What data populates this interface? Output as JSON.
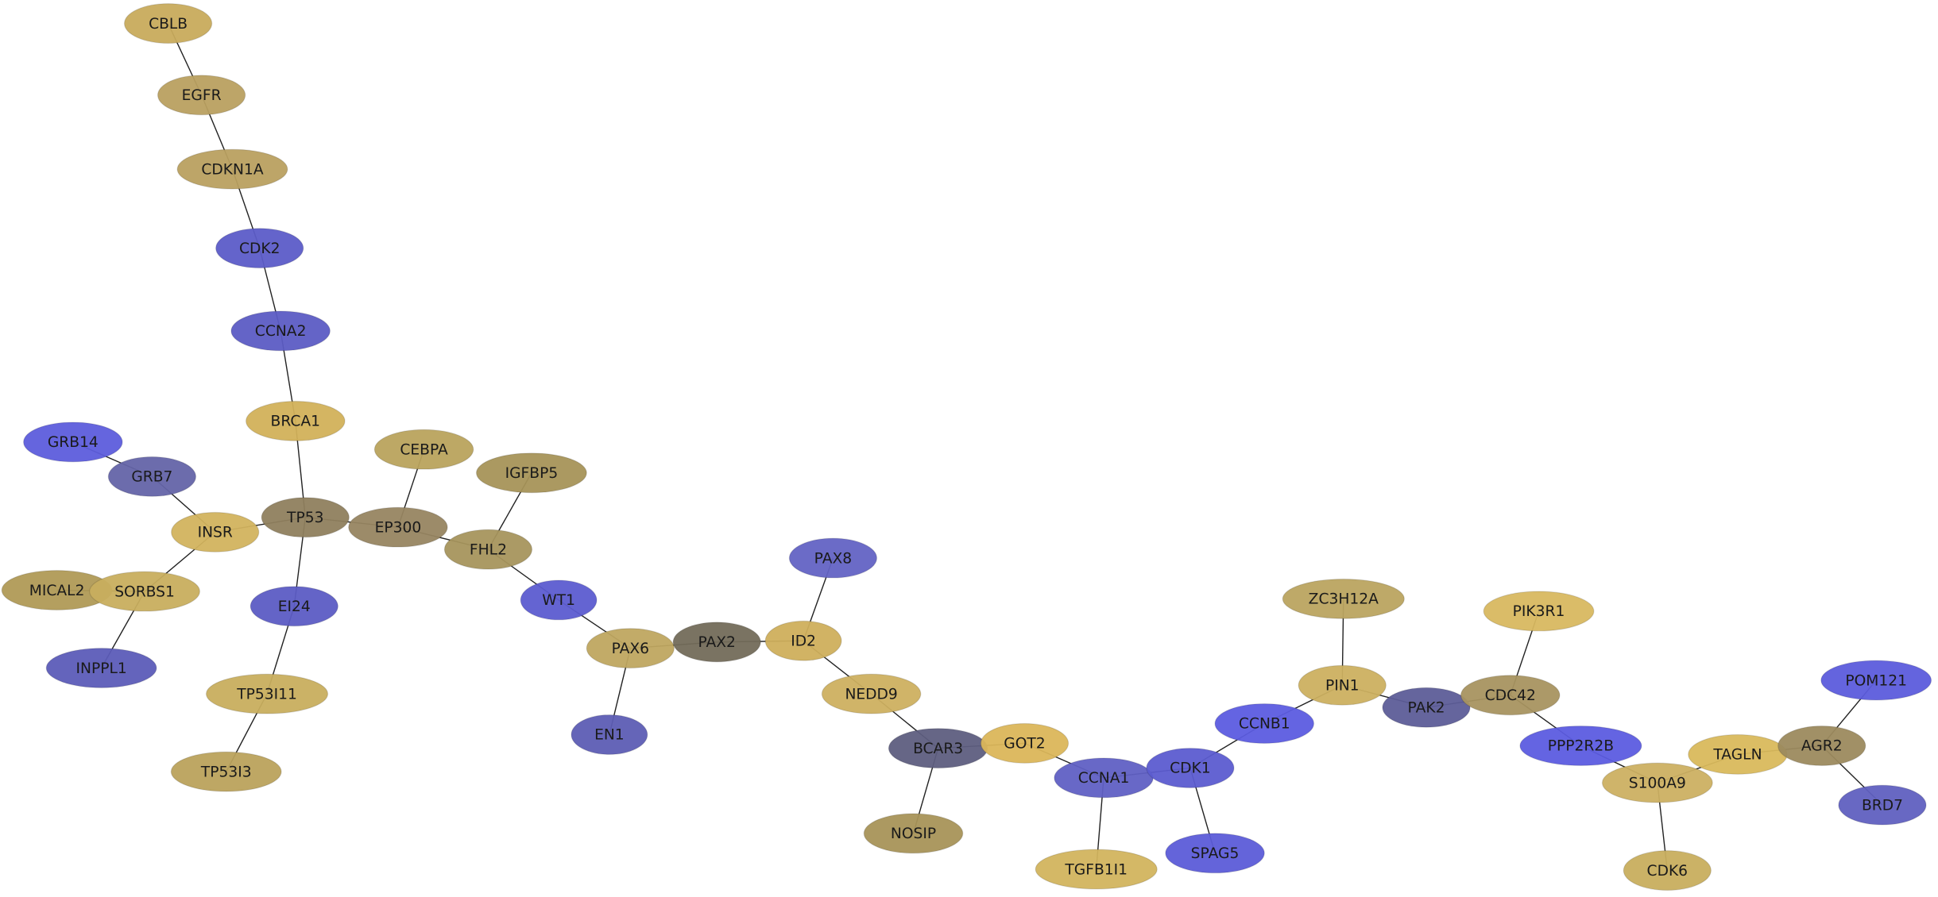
{
  "nodes": [
    {
      "label": "CBLB",
      "color": "#c8ab5c"
    },
    {
      "label": "EGFR",
      "color": "#b9a060"
    },
    {
      "label": "CDKN1A",
      "color": "#b9a060"
    },
    {
      "label": "CDK2",
      "color": "#5c5cc8"
    },
    {
      "label": "CCNA2",
      "color": "#5c5cc4"
    },
    {
      "label": "BRCA1",
      "color": "#d2b15a"
    },
    {
      "label": "TP53",
      "color": "#8f7f5e"
    },
    {
      "label": "GRB14",
      "color": "#5d5ddc"
    },
    {
      "label": "GRB7",
      "color": "#6464a8"
    },
    {
      "label": "INSR",
      "color": "#d2b35e"
    },
    {
      "label": "MICAL2",
      "color": "#b09a56"
    },
    {
      "label": "SORBS1",
      "color": "#c8ae5e"
    },
    {
      "label": "INPPL1",
      "color": "#5c5cb8"
    },
    {
      "label": "EI24",
      "color": "#5c5cc4"
    },
    {
      "label": "TP53I11",
      "color": "#c8ae5e"
    },
    {
      "label": "TP53I3",
      "color": "#bba25c"
    },
    {
      "label": "CEBPA",
      "color": "#b9a35d"
    },
    {
      "label": "EP300",
      "color": "#978561"
    },
    {
      "label": "IGFBP5",
      "color": "#a69458"
    },
    {
      "label": "FHL2",
      "color": "#a6955d"
    },
    {
      "label": "WT1",
      "color": "#5c5cd0"
    },
    {
      "label": "PAX8",
      "color": "#6363c4"
    },
    {
      "label": "PAX6",
      "color": "#bfa660"
    },
    {
      "label": "PAX2",
      "color": "#736b5a"
    },
    {
      "label": "ID2",
      "color": "#cfaf5c"
    },
    {
      "label": "EN1",
      "color": "#5d5db4"
    },
    {
      "label": "NEDD9",
      "color": "#cdb060"
    },
    {
      "label": "BCAR3",
      "color": "#5e5e80"
    },
    {
      "label": "GOT2",
      "color": "#dbb65a"
    },
    {
      "label": "NOSIP",
      "color": "#a89458"
    },
    {
      "label": "CCNA1",
      "color": "#6060c4"
    },
    {
      "label": "TGFB1I1",
      "color": "#d2b45e"
    },
    {
      "label": "CDK1",
      "color": "#5c5cd0"
    },
    {
      "label": "SPAG5",
      "color": "#5c5cd8"
    },
    {
      "label": "CCNB1",
      "color": "#5c5ce0"
    },
    {
      "label": "PIN1",
      "color": "#ccb060"
    },
    {
      "label": "ZC3H12A",
      "color": "#bba460"
    },
    {
      "label": "PAK2",
      "color": "#5d5d98"
    },
    {
      "label": "CDC42",
      "color": "#a89460"
    },
    {
      "label": "PIK3R1",
      "color": "#d8b860"
    },
    {
      "label": "PPP2R2B",
      "color": "#5c5ce0"
    },
    {
      "label": "S100A9",
      "color": "#ccb062"
    },
    {
      "label": "CDK6",
      "color": "#c8ae5e"
    },
    {
      "label": "TAGLN",
      "color": "#d9b95c"
    },
    {
      "label": "AGR2",
      "color": "#9c8a5e"
    },
    {
      "label": "POM121",
      "color": "#5c5cdc"
    },
    {
      "label": "BRD7",
      "color": "#6060c0"
    }
  ]
}
